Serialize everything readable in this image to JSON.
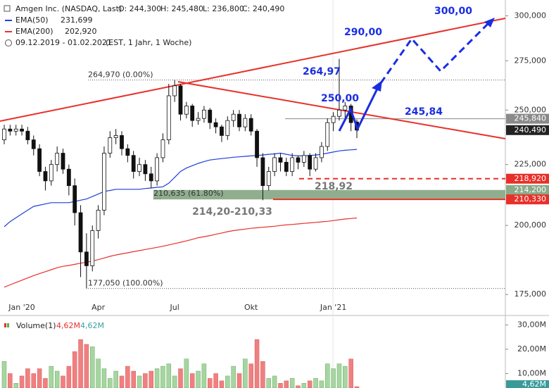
{
  "chart_data": {
    "type": "candlestick",
    "header": {
      "title": "Amgen Inc. (NASDAQ, Last)",
      "open": "O: 244,300",
      "high": "H: 245,480",
      "low": "L: 236,800",
      "close": "C: 240,490",
      "period": "09.12.2019 - 01.02.2021",
      "info": "(EST, 1 Jahr, 1 Woche)"
    },
    "categories": [
      null,
      null,
      null,
      "Jan '20",
      null,
      null,
      null,
      null,
      null,
      null,
      null,
      null,
      null,
      null,
      null,
      null,
      "Apr",
      null,
      null,
      null,
      null,
      null,
      null,
      null,
      null,
      null,
      null,
      null,
      null,
      "Jul",
      null,
      null,
      null,
      null,
      null,
      null,
      null,
      null,
      null,
      null,
      null,
      null,
      "Okt",
      null,
      null,
      null,
      null,
      null,
      null,
      null,
      null,
      null,
      null,
      null,
      null,
      null,
      "Jan '21",
      null,
      null,
      null,
      null
    ],
    "open": [
      236,
      241,
      240,
      241,
      240,
      236,
      232,
      222,
      218,
      225,
      230,
      223,
      216,
      205,
      190,
      185,
      198,
      206,
      230,
      237,
      238,
      232,
      229,
      222,
      225,
      221,
      218,
      228,
      236,
      257,
      262,
      248,
      252,
      245,
      246,
      250,
      244,
      242,
      238,
      245,
      248,
      242,
      246,
      240,
      228,
      216,
      222,
      228,
      226,
      222,
      228,
      226,
      229,
      223,
      228,
      233,
      244,
      247,
      250,
      252,
      244.3
    ],
    "high": [
      243,
      243,
      243,
      243,
      242,
      238,
      234,
      224,
      227,
      233,
      232,
      225,
      219,
      208,
      197,
      200,
      208,
      233,
      240,
      241,
      240,
      234,
      231,
      228,
      227,
      224,
      230,
      239,
      263,
      265,
      263,
      254,
      253,
      249,
      252,
      251,
      246,
      243,
      247,
      250,
      250,
      248,
      248,
      241,
      230,
      224,
      230,
      230,
      228,
      230,
      229,
      231,
      230,
      230,
      235,
      246,
      249,
      276,
      254,
      253,
      245.48
    ],
    "low": [
      234,
      238,
      238,
      238,
      234,
      229,
      220,
      214,
      216,
      222,
      221,
      212,
      200,
      181,
      177,
      183,
      195,
      204,
      228,
      234,
      229,
      226,
      219,
      220,
      218,
      215,
      216,
      226,
      234,
      254,
      245,
      246,
      242,
      243,
      244,
      241,
      239,
      235,
      236,
      242,
      240,
      240,
      238,
      224,
      210,
      214,
      220,
      222,
      220,
      220,
      223,
      224,
      220,
      222,
      226,
      231,
      240,
      245,
      246,
      240,
      236.8
    ],
    "close": [
      241,
      240,
      241,
      240,
      236,
      232,
      222,
      218,
      225,
      230,
      223,
      216,
      205,
      190,
      185,
      198,
      206,
      230,
      237,
      238,
      232,
      229,
      222,
      225,
      221,
      218,
      228,
      236,
      257,
      262,
      248,
      252,
      245,
      246,
      250,
      244,
      242,
      238,
      245,
      248,
      242,
      246,
      240,
      228,
      216,
      222,
      228,
      226,
      222,
      228,
      226,
      229,
      223,
      228,
      233,
      244,
      247,
      250,
      252,
      244,
      240.49
    ],
    "up_color": "#ffffff",
    "down_color": "#111111",
    "series": [
      {
        "name": "EMA(50)",
        "value_label": "231,699",
        "color": "#1f3fd6",
        "values": [
          199.5,
          201.5,
          203,
          204.5,
          206,
          207.5,
          208,
          208.5,
          209,
          209,
          209,
          209,
          209.5,
          210,
          210.5,
          211.5,
          212.5,
          213.6,
          214,
          214.5,
          214.5,
          214.5,
          214.5,
          214.5,
          214.8,
          215,
          215.3,
          215.5,
          217,
          219.5,
          222,
          223.5,
          224.5,
          225.5,
          226.3,
          227,
          227.3,
          227.6,
          227.9,
          228.2,
          228.4,
          228.6,
          228.8,
          229,
          229.2,
          229.5,
          229.7,
          230,
          229.5,
          229,
          228.8,
          228.8,
          229,
          229.2,
          229.5,
          230,
          230.5,
          231,
          231.3,
          231.5,
          231.7
        ]
      },
      {
        "name": "EMA(200)",
        "value_label": "202,920",
        "color": "#e8302a",
        "values": [
          177.5,
          178.3,
          179.1,
          179.9,
          180.7,
          181.5,
          182.2,
          182.9,
          183.6,
          184.3,
          184.8,
          185.1,
          185.5,
          185.9,
          186.3,
          186.7,
          187.2,
          187.8,
          188.4,
          188.9,
          189.3,
          189.7,
          190.1,
          190.5,
          190.9,
          191.3,
          191.7,
          192.1,
          192.6,
          193.1,
          193.6,
          194.1,
          194.7,
          195.3,
          195.7,
          196.1,
          196.6,
          197.1,
          197.6,
          198.0,
          198.3,
          198.6,
          198.9,
          199.1,
          199.3,
          199.5,
          199.7,
          200.0,
          200.2,
          200.4,
          200.6,
          200.8,
          201.0,
          201.2,
          201.4,
          201.6,
          201.9,
          202.2,
          202.5,
          202.7,
          202.92
        ]
      }
    ],
    "log_scale": true,
    "ylim": [
      168.5,
      309.3
    ],
    "yticks": [
      {
        "value": 175,
        "label": "175,000"
      },
      {
        "value": 200,
        "label": "200,000"
      },
      {
        "value": 225,
        "label": "225,000"
      },
      {
        "value": 250,
        "label": "250,000"
      },
      {
        "value": 275,
        "label": "275,000"
      },
      {
        "value": 300,
        "label": "300,000"
      }
    ],
    "fib_levels": [
      {
        "value": 264.97,
        "label": "264,970 (0.00%)"
      },
      {
        "value": 210.635,
        "label": "210,635 (61.80%)"
      },
      {
        "value": 177.05,
        "label": "177,050 (100.00%)"
      }
    ],
    "zone": {
      "high": 214.2,
      "low": 210.33,
      "label": "214,20-210,33",
      "color": "#8aaa88"
    },
    "levels": [
      {
        "value": 245.84,
        "label": "245,840",
        "color": "#8a8a8a",
        "style": "solid"
      },
      {
        "value": 240.49,
        "label": "240,490",
        "color": "#222222",
        "style": "none"
      },
      {
        "value": 218.92,
        "label": "218,920",
        "color": "#e8302a",
        "style": "dash"
      },
      {
        "value": 214.2,
        "label": "214,200",
        "color": "#8aaa88",
        "style": "none"
      },
      {
        "value": 210.33,
        "label": "210,330",
        "color": "#e8302a",
        "style": "solid"
      }
    ],
    "annotations": [
      "300,00",
      "290,00",
      "264,97",
      "250,00",
      "245,84",
      "218,92"
    ],
    "volume": {
      "name": "Volume(1)",
      "value_label": "4,62M",
      "value_label2": "4,62M",
      "up_color": "#a6d6a0",
      "down_color": "#f08080",
      "values": [
        15,
        10,
        6,
        9,
        12,
        10,
        12,
        8,
        13,
        11,
        9,
        13,
        19,
        24,
        22,
        21,
        16,
        12,
        8,
        11,
        9,
        13,
        11,
        9,
        10,
        11,
        12,
        13,
        14,
        9,
        12,
        16,
        10,
        11,
        14,
        8,
        10,
        7,
        9,
        13,
        10,
        16,
        14,
        24,
        15,
        8,
        9,
        6,
        7,
        8,
        5,
        6,
        7,
        8,
        7,
        14,
        12,
        14,
        13,
        16,
        4.62
      ],
      "ylim": [
        4.06,
        33.3
      ],
      "yticks": [
        {
          "value": 10,
          "label": "10,00M"
        },
        {
          "value": 20,
          "label": "20,00M"
        },
        {
          "value": 30,
          "label": "30,00M"
        }
      ]
    }
  }
}
